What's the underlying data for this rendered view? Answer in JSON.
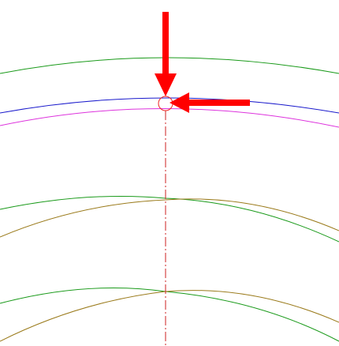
{
  "canvas": {
    "background": "#ffffff"
  },
  "curves": {
    "top_green": {
      "color": "#1a9a1a"
    },
    "blue": {
      "color": "#1a1acc"
    },
    "magenta": {
      "color": "#dd33dd"
    },
    "mid_green": {
      "color": "#1a9a1a"
    },
    "mid_olive": {
      "color": "#9a7a1a"
    },
    "bottom_green": {
      "color": "#1a9a1a"
    },
    "bottom_olive": {
      "color": "#9a7a1a"
    }
  },
  "centerline": {
    "color": "#cc2222",
    "style": "dash-dot"
  },
  "marker": {
    "color": "#ee2222",
    "shape": "circle"
  },
  "arrows": {
    "down_arrow": {
      "color": "#ff0000",
      "direction": "down"
    },
    "left_arrow": {
      "color": "#ff0000",
      "direction": "left"
    }
  }
}
